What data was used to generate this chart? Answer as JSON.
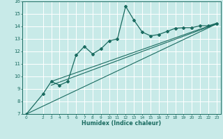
{
  "xlabel": "Humidex (Indice chaleur)",
  "ylabel": "",
  "bg_color": "#c8eae8",
  "grid_color": "#ffffff",
  "line_color": "#1a6b60",
  "xlim": [
    -0.5,
    23.5
  ],
  "ylim": [
    7,
    16
  ],
  "xticks": [
    0,
    2,
    3,
    4,
    5,
    6,
    7,
    8,
    9,
    10,
    11,
    12,
    13,
    14,
    15,
    16,
    17,
    18,
    19,
    20,
    21,
    22,
    23
  ],
  "yticks": [
    7,
    8,
    9,
    10,
    11,
    12,
    13,
    14,
    15,
    16
  ],
  "main_line_x": [
    0,
    2,
    3,
    4,
    5,
    6,
    7,
    8,
    9,
    10,
    11,
    12,
    13,
    14,
    15,
    16,
    17,
    18,
    19,
    20,
    21,
    22,
    23
  ],
  "main_line_y": [
    7.0,
    8.6,
    9.6,
    9.3,
    9.6,
    11.7,
    12.4,
    11.8,
    12.2,
    12.85,
    13.0,
    15.6,
    14.5,
    13.55,
    13.25,
    13.35,
    13.6,
    13.85,
    13.9,
    13.9,
    14.05,
    14.05,
    14.25
  ],
  "reg_line1_x": [
    0,
    23
  ],
  "reg_line1_y": [
    7.0,
    14.2
  ],
  "reg_line2_x": [
    3,
    23
  ],
  "reg_line2_y": [
    9.3,
    14.2
  ],
  "reg_line3_x": [
    3,
    23
  ],
  "reg_line3_y": [
    9.6,
    14.25
  ]
}
